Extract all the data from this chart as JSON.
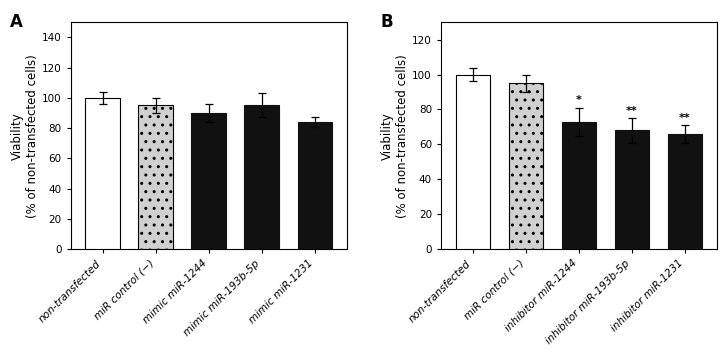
{
  "panel_A": {
    "label": "A",
    "categories": [
      "non-transfected",
      "miR control (−)",
      "mimic miR-1244",
      "mimic miR-193b-5p",
      "mimic miR-1231"
    ],
    "values": [
      100,
      95,
      90,
      95,
      84
    ],
    "errors": [
      4,
      5,
      6,
      8,
      3
    ],
    "bar_facecolors": [
      "#ffffff",
      "#d0d0d0",
      "#111111",
      "#111111",
      "#111111"
    ],
    "bar_hatch": [
      "",
      "..",
      "",
      "",
      ""
    ],
    "bar_edgecolors": [
      "#000000",
      "#000000",
      "#111111",
      "#111111",
      "#111111"
    ],
    "ylabel": "Viability\n(% of non-transfected cells)",
    "ylim": [
      0,
      150
    ],
    "yticks": [
      0,
      20,
      40,
      60,
      80,
      100,
      120,
      140
    ],
    "significance": [
      "",
      "",
      "",
      "",
      ""
    ]
  },
  "panel_B": {
    "label": "B",
    "categories": [
      "non-transfected",
      "miR control (−)",
      "inhibitor miR-1244",
      "inhibitor miR-193b-5p",
      "inhibitor miR-1231"
    ],
    "values": [
      100,
      95,
      73,
      68,
      66
    ],
    "errors": [
      4,
      5,
      8,
      7,
      5
    ],
    "bar_facecolors": [
      "#ffffff",
      "#d0d0d0",
      "#111111",
      "#111111",
      "#111111"
    ],
    "bar_hatch": [
      "",
      "..",
      "",
      "",
      ""
    ],
    "bar_edgecolors": [
      "#000000",
      "#000000",
      "#111111",
      "#111111",
      "#111111"
    ],
    "ylabel": "Viability\n(% of non-transfected cells)",
    "ylim": [
      0,
      130
    ],
    "yticks": [
      0,
      20,
      40,
      60,
      80,
      100,
      120
    ],
    "significance": [
      "",
      "",
      "*",
      "**",
      "**"
    ]
  },
  "bar_width": 0.65,
  "capsize": 3,
  "tick_label_fontsize": 7.5,
  "ylabel_fontsize": 8.5,
  "label_fontsize": 12,
  "sig_fontsize": 8
}
